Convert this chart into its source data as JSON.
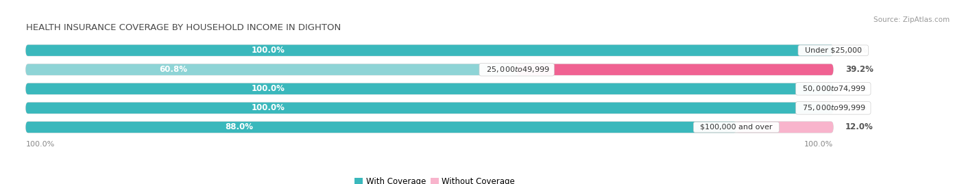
{
  "title": "HEALTH INSURANCE COVERAGE BY HOUSEHOLD INCOME IN DIGHTON",
  "source": "Source: ZipAtlas.com",
  "categories": [
    "Under $25,000",
    "$25,000 to $49,999",
    "$50,000 to $74,999",
    "$75,000 to $99,999",
    "$100,000 and over"
  ],
  "with_coverage": [
    100.0,
    60.8,
    100.0,
    100.0,
    88.0
  ],
  "without_coverage": [
    0.0,
    39.2,
    0.0,
    0.0,
    12.0
  ],
  "color_with": "#3ab8bc",
  "color_with_light": "#8ed4d6",
  "color_without_dark": "#f06292",
  "color_without_light": "#f8b4cc",
  "bar_bg_color": "#e8e8e8",
  "bar_bg_stroke": "#d0d0d0",
  "title_color": "#4a4a4a",
  "source_color": "#999999",
  "value_label_color_white": "#ffffff",
  "value_label_color_dark": "#555555",
  "x_axis_label_left": "100.0%",
  "x_axis_label_right": "100.0%",
  "legend_with": "With Coverage",
  "legend_without": "Without Coverage",
  "cat_label_fontsize": 8.0,
  "value_fontsize": 8.5,
  "title_fontsize": 9.5
}
